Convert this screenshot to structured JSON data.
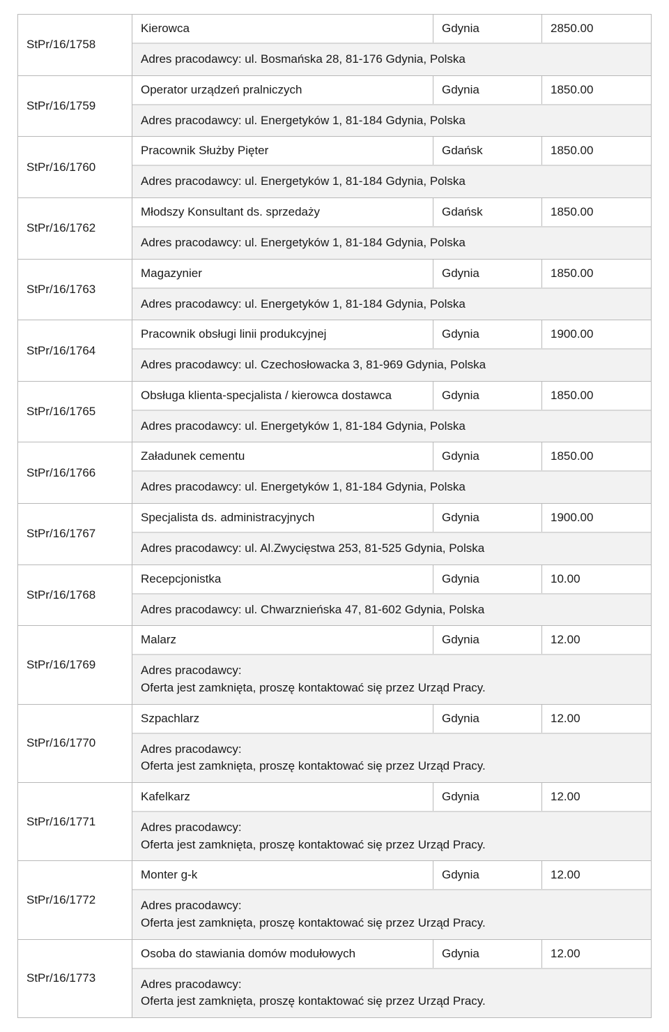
{
  "table": {
    "columns": {
      "id_width": 164,
      "city_width": 156,
      "salary_width": 156
    },
    "colors": {
      "border": "#b8b8b8",
      "inner_divider": "#d8d8d8",
      "address_bg": "#f2f2f2",
      "text": "#1a1a1a",
      "page_bg": "#ffffff"
    },
    "font_size_pt": 13,
    "rows": [
      {
        "id": "StPr/16/1758",
        "title": "Kierowca",
        "city": "Gdynia",
        "salary": "2850.00",
        "address": "Adres pracodawcy: ul. Bosmańska 28, 81-176 Gdynia, Polska"
      },
      {
        "id": "StPr/16/1759",
        "title": "Operator urządzeń pralniczych",
        "city": "Gdynia",
        "salary": "1850.00",
        "address": "Adres pracodawcy: ul. Energetyków 1, 81-184 Gdynia, Polska"
      },
      {
        "id": "StPr/16/1760",
        "title": "Pracownik Służby Pięter",
        "city": "Gdańsk",
        "salary": "1850.00",
        "address": "Adres pracodawcy: ul. Energetyków 1, 81-184 Gdynia, Polska"
      },
      {
        "id": "StPr/16/1762",
        "title": "Młodszy Konsultant ds. sprzedaży",
        "city": "Gdańsk",
        "salary": "1850.00",
        "address": "Adres pracodawcy: ul. Energetyków 1, 81-184 Gdynia, Polska"
      },
      {
        "id": "StPr/16/1763",
        "title": "Magazynier",
        "city": "Gdynia",
        "salary": "1850.00",
        "address": "Adres pracodawcy: ul. Energetyków 1, 81-184 Gdynia, Polska"
      },
      {
        "id": "StPr/16/1764",
        "title": "Pracownik obsługi linii produkcyjnej",
        "city": "Gdynia",
        "salary": "1900.00",
        "address": "Adres pracodawcy: ul. Czechosłowacka 3, 81-969 Gdynia, Polska"
      },
      {
        "id": "StPr/16/1765",
        "title": "Obsługa klienta-specjalista / kierowca dostawca",
        "city": "Gdynia",
        "salary": "1850.00",
        "address": "Adres pracodawcy: ul. Energetyków 1, 81-184 Gdynia, Polska"
      },
      {
        "id": "StPr/16/1766",
        "title": "Załadunek cementu",
        "city": "Gdynia",
        "salary": "1850.00",
        "address": "Adres pracodawcy: ul. Energetyków 1, 81-184 Gdynia, Polska"
      },
      {
        "id": "StPr/16/1767",
        "title": "Specjalista ds. administracyjnych",
        "city": "Gdynia",
        "salary": "1900.00",
        "address": "Adres pracodawcy: ul. Al.Zwycięstwa 253, 81-525 Gdynia, Polska"
      },
      {
        "id": "StPr/16/1768",
        "title": "Recepcjonistka",
        "city": "Gdynia",
        "salary": "10.00",
        "address": "Adres pracodawcy: ul. Chwarznieńska 47, 81-602 Gdynia, Polska"
      },
      {
        "id": "StPr/16/1769",
        "title": "Malarz",
        "city": "Gdynia",
        "salary": "12.00",
        "address": "Adres pracodawcy:\nOferta jest zamknięta, proszę kontaktować się przez Urząd Pracy."
      },
      {
        "id": "StPr/16/1770",
        "title": "Szpachlarz",
        "city": "Gdynia",
        "salary": "12.00",
        "address": "Adres pracodawcy:\nOferta jest zamknięta, proszę kontaktować się przez Urząd Pracy."
      },
      {
        "id": "StPr/16/1771",
        "title": "Kafelkarz",
        "city": "Gdynia",
        "salary": "12.00",
        "address": "Adres pracodawcy:\nOferta jest zamknięta, proszę kontaktować się przez Urząd Pracy."
      },
      {
        "id": "StPr/16/1772",
        "title": "Monter g-k",
        "city": "Gdynia",
        "salary": "12.00",
        "address": "Adres pracodawcy:\nOferta jest zamknięta, proszę kontaktować się przez Urząd Pracy."
      },
      {
        "id": "StPr/16/1773",
        "title": "Osoba do stawiania domów modułowych",
        "city": "Gdynia",
        "salary": "12.00",
        "address": "Adres pracodawcy:\nOferta jest zamknięta, proszę kontaktować się przez Urząd Pracy."
      }
    ]
  }
}
